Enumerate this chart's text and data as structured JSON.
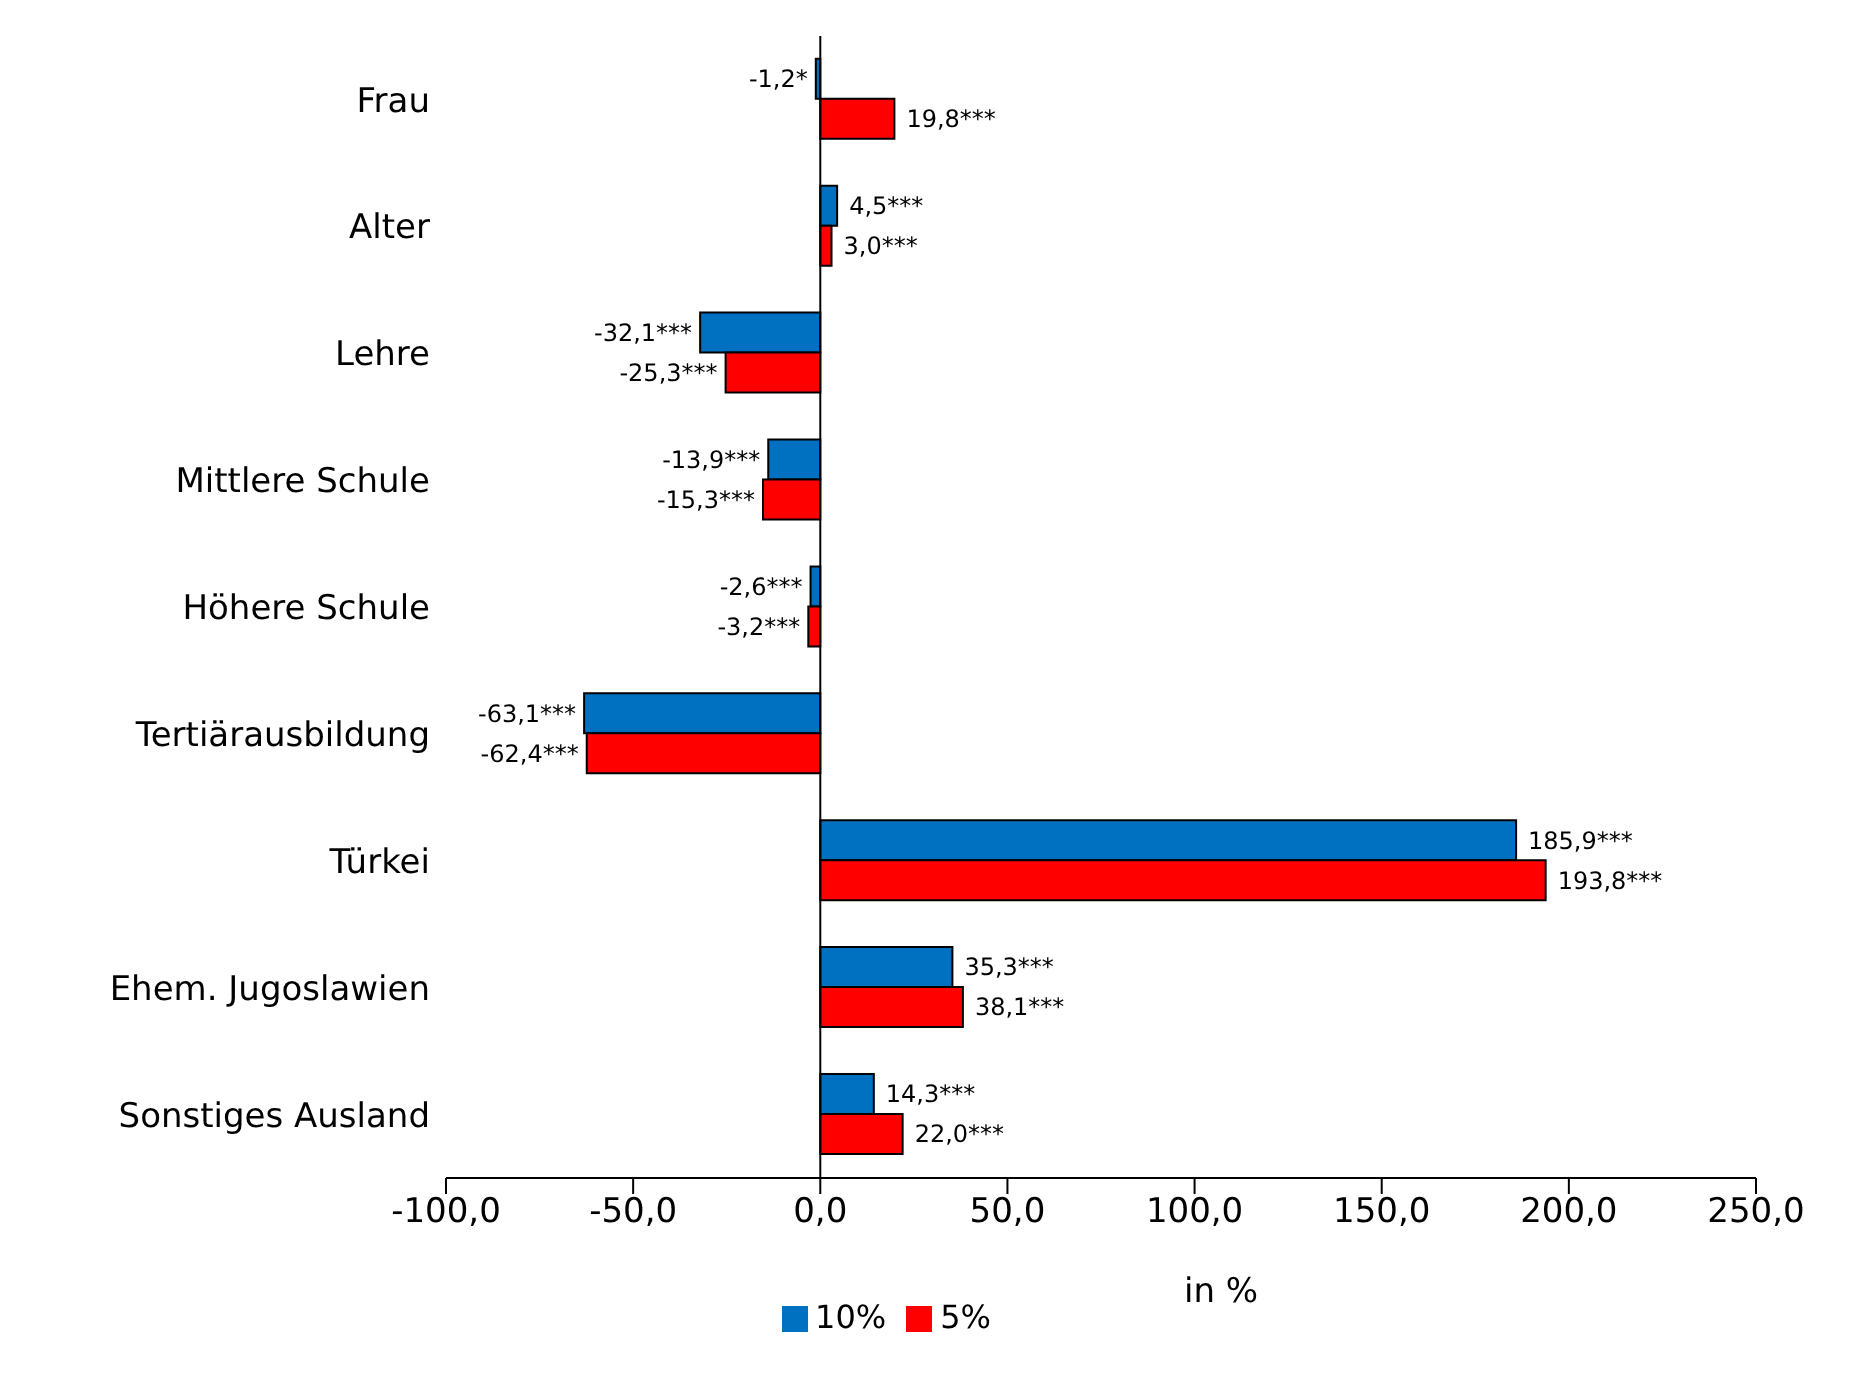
{
  "chart_data": {
    "type": "bar",
    "orientation": "horizontal",
    "xlabel": "in %",
    "categories": [
      "Frau",
      "Alter",
      "Lehre",
      "Mittlere Schule",
      "Höhere Schule",
      "Tertiärausbildung",
      "Türkei",
      "Ehem. Jugoslawien",
      "Sonstiges Ausland"
    ],
    "series": [
      {
        "name": "10%",
        "color": "#0070c0",
        "values": [
          -1.2,
          4.5,
          -32.1,
          -13.9,
          -2.6,
          -63.1,
          185.9,
          35.3,
          14.3
        ],
        "value_labels": [
          "-1,2*",
          "4,5***",
          "-32,1***",
          "-13,9***",
          "-2,6***",
          "-63,1***",
          "185,9***",
          "35,3***",
          "14,3***"
        ]
      },
      {
        "name": "5%",
        "color": "#ff0000",
        "values": [
          19.8,
          3.0,
          -25.3,
          -15.3,
          -3.2,
          -62.4,
          193.8,
          38.1,
          22.0
        ],
        "value_labels": [
          "19,8***",
          "3,0***",
          "-25,3***",
          "-15,3***",
          "-3,2***",
          "-62,4***",
          "193,8***",
          "38,1***",
          "22,0***"
        ]
      }
    ],
    "xlim": [
      -100,
      250
    ],
    "xticks": [
      {
        "value": -100,
        "label": "-100,0"
      },
      {
        "value": -50,
        "label": "-50,0"
      },
      {
        "value": 0,
        "label": "0,0"
      },
      {
        "value": 50,
        "label": "50,0"
      },
      {
        "value": 100,
        "label": "100,0"
      },
      {
        "value": 150,
        "label": "150,0"
      },
      {
        "value": 200,
        "label": "200,0"
      },
      {
        "value": 250,
        "label": "250,0"
      }
    ],
    "legend": "bottom"
  }
}
